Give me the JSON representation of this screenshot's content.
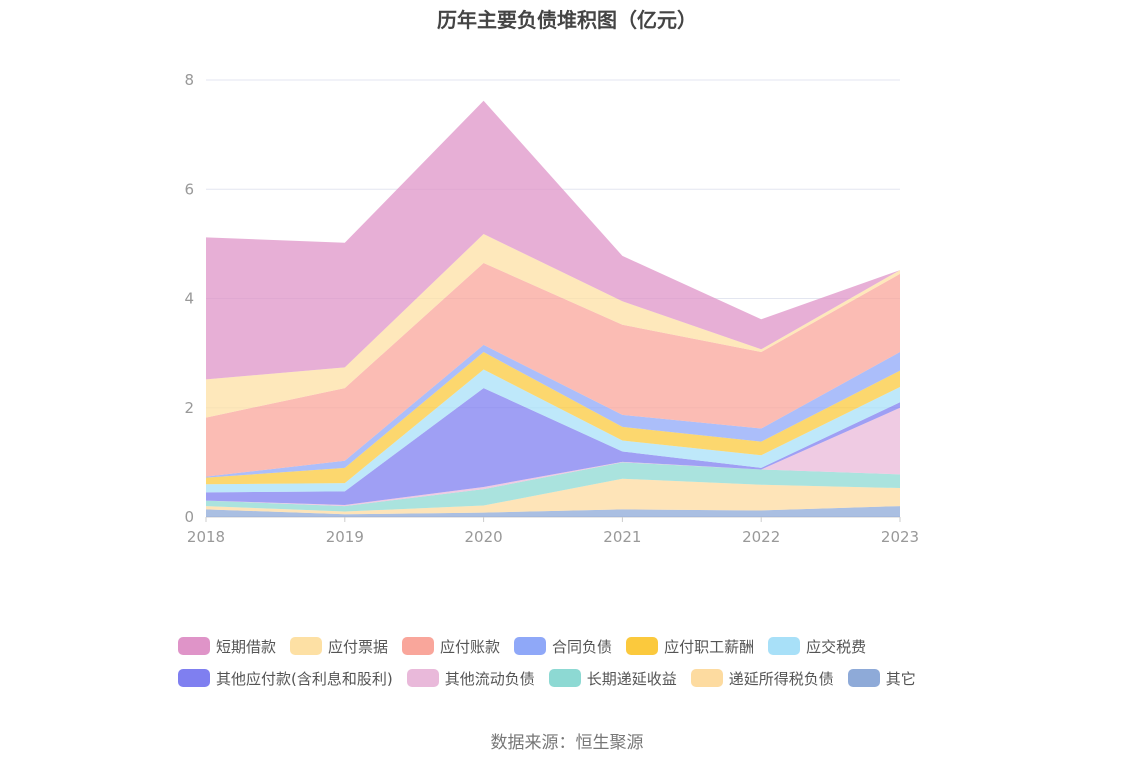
{
  "chart_data": {
    "type": "area",
    "stacked": true,
    "title": "历年主要负债堆积图（亿元）",
    "x": [
      "2018",
      "2019",
      "2020",
      "2021",
      "2022",
      "2023"
    ],
    "ylim": [
      0,
      8
    ],
    "yticks": [
      "0",
      "2",
      "4",
      "6",
      "8"
    ],
    "grid": true,
    "legend_position": "bottom",
    "series": [
      {
        "name": "其它",
        "color": "#8eaad8",
        "values": [
          0.14,
          0.05,
          0.08,
          0.14,
          0.12,
          0.2
        ]
      },
      {
        "name": "递延所得税负债",
        "color": "#fddba0",
        "values": [
          0.06,
          0.05,
          0.13,
          0.56,
          0.47,
          0.33
        ]
      },
      {
        "name": "长期递延收益",
        "color": "#8dd9d3",
        "values": [
          0.1,
          0.1,
          0.3,
          0.3,
          0.28,
          0.25
        ]
      },
      {
        "name": "其他流动负债",
        "color": "#e9b9da",
        "values": [
          0.0,
          0.02,
          0.04,
          0.01,
          0.0,
          1.22
        ]
      },
      {
        "name": "其他应付款(含利息和股利)",
        "color": "#7f7ff0",
        "values": [
          0.15,
          0.25,
          1.81,
          0.19,
          0.03,
          0.1
        ]
      },
      {
        "name": "应交税费",
        "color": "#a8e0f8",
        "values": [
          0.15,
          0.15,
          0.34,
          0.2,
          0.23,
          0.28
        ]
      },
      {
        "name": "应付职工薪酬",
        "color": "#fbc93d",
        "values": [
          0.12,
          0.28,
          0.32,
          0.25,
          0.25,
          0.3
        ]
      },
      {
        "name": "合同负债",
        "color": "#8fa8f8",
        "values": [
          0.02,
          0.13,
          0.13,
          0.22,
          0.24,
          0.34
        ]
      },
      {
        "name": "应付账款",
        "color": "#f9a69b",
        "values": [
          1.08,
          1.33,
          1.5,
          1.65,
          1.4,
          1.43
        ]
      },
      {
        "name": "应付票据",
        "color": "#fde0a4",
        "values": [
          0.7,
          0.38,
          0.53,
          0.43,
          0.05,
          0.07
        ]
      },
      {
        "name": "短期借款",
        "color": "#df94c8",
        "values": [
          2.6,
          2.28,
          2.44,
          0.83,
          0.55,
          0.0
        ]
      }
    ]
  },
  "legend": [
    {
      "label": "短期借款",
      "color": "#df94c8"
    },
    {
      "label": "应付票据",
      "color": "#fde0a4"
    },
    {
      "label": "应付账款",
      "color": "#f9a69b"
    },
    {
      "label": "合同负债",
      "color": "#8fa8f8"
    },
    {
      "label": "应付职工薪酬",
      "color": "#fbc93d"
    },
    {
      "label": "应交税费",
      "color": "#a8e0f8"
    },
    {
      "label": "其他应付款(含利息和股利)",
      "color": "#7f7ff0"
    },
    {
      "label": "其他流动负债",
      "color": "#e9b9da"
    },
    {
      "label": "长期递延收益",
      "color": "#8dd9d3"
    },
    {
      "label": "递延所得税负债",
      "color": "#fddba0"
    },
    {
      "label": "其它",
      "color": "#8eaad8"
    }
  ],
  "source": "数据来源：恒生聚源"
}
